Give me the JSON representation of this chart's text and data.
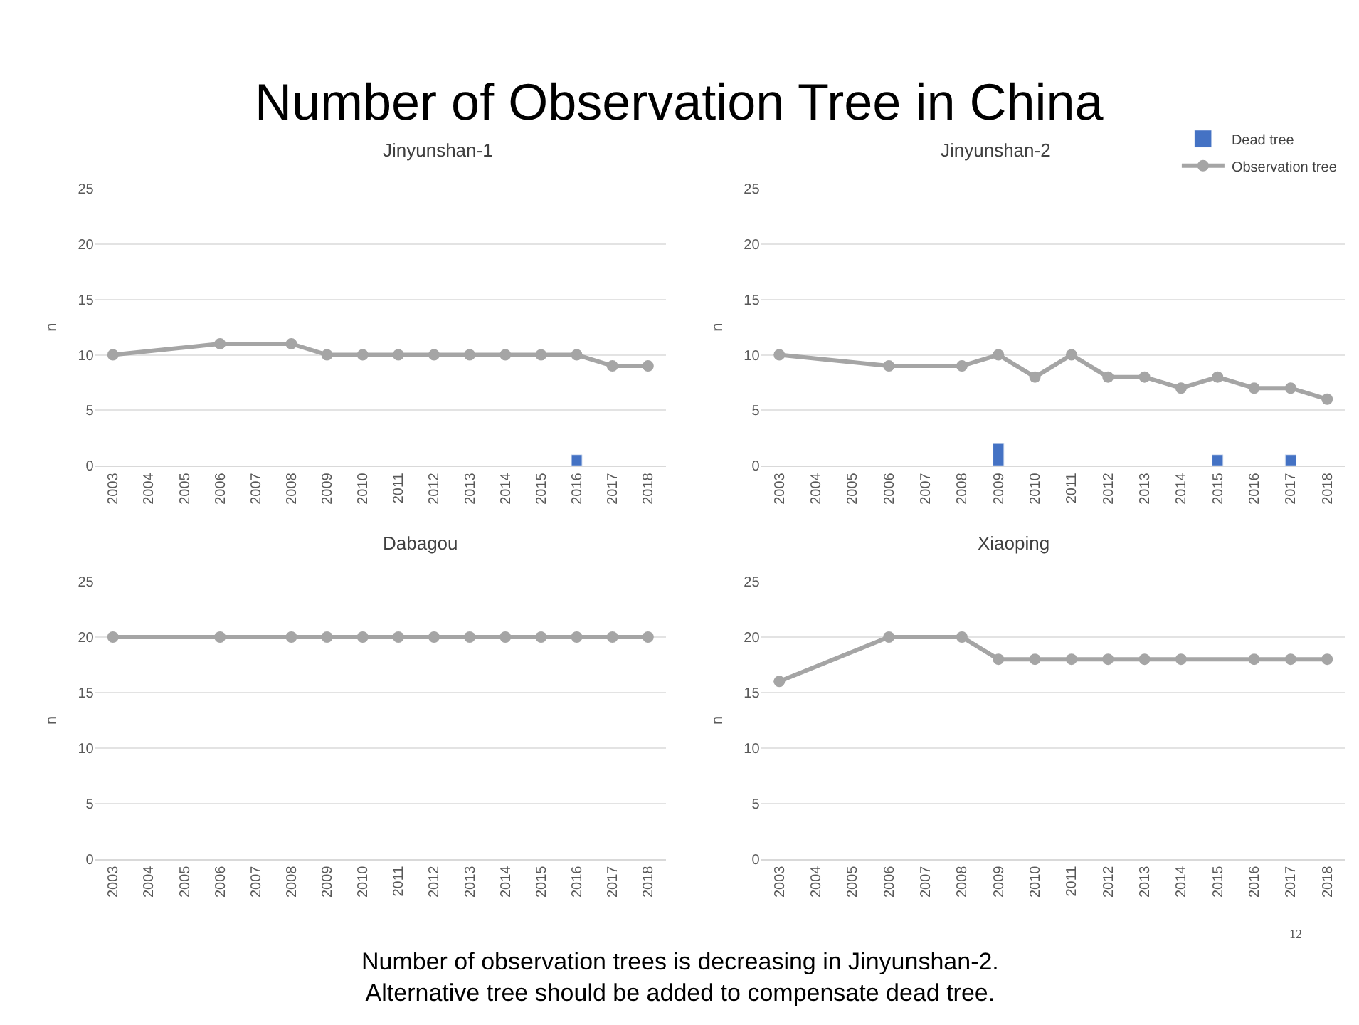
{
  "chart_data": [
    {
      "type": "line",
      "title": "Number of Observation Tree in China",
      "subtitle": "Jinyunshan-1",
      "ylabel": "n",
      "categories": [
        "2003",
        "2004",
        "2005",
        "2006",
        "2007",
        "2008",
        "2009",
        "2010",
        "2011",
        "2012",
        "2013",
        "2014",
        "2015",
        "2016",
        "2017",
        "2018"
      ],
      "ylim": [
        0,
        25
      ],
      "yticks": [
        0,
        5,
        10,
        15,
        20,
        25
      ],
      "grid": "y",
      "legend": false,
      "marker": "circle",
      "series": [
        {
          "type": "bar",
          "color": "#4472c4",
          "values": [
            null,
            null,
            null,
            null,
            null,
            null,
            null,
            null,
            null,
            null,
            null,
            null,
            null,
            1,
            null,
            null
          ]
        },
        {
          "color": "#a5a5a5",
          "values": [
            10,
            null,
            null,
            11,
            null,
            11,
            10,
            10,
            10,
            10,
            10,
            10,
            10,
            10,
            9,
            9
          ]
        }
      ]
    },
    {
      "type": "line",
      "title": "Jinyunshan-2",
      "ylabel": "n",
      "categories": [
        "2003",
        "2004",
        "2005",
        "2006",
        "2007",
        "2008",
        "2009",
        "2010",
        "2011",
        "2012",
        "2013",
        "2014",
        "2015",
        "2016",
        "2017",
        "2018"
      ],
      "ylim": [
        0,
        25
      ],
      "yticks": [
        0,
        5,
        10,
        15,
        20,
        25
      ],
      "grid": "y",
      "legend": "top right",
      "marker": "circle",
      "series": [
        {
          "type": "bar",
          "name": "Dead tree",
          "color": "#4472c4",
          "values": [
            null,
            null,
            null,
            null,
            null,
            null,
            2,
            null,
            null,
            null,
            null,
            null,
            1,
            null,
            1,
            null
          ]
        },
        {
          "name": "Observation tree",
          "color": "#a5a5a5",
          "values": [
            10,
            null,
            null,
            9,
            null,
            9,
            10,
            8,
            10,
            8,
            8,
            7,
            8,
            7,
            7,
            6
          ]
        }
      ]
    },
    {
      "type": "line",
      "title": "Dabagou",
      "ylabel": "n",
      "categories": [
        "2003",
        "2004",
        "2005",
        "2006",
        "2007",
        "2008",
        "2009",
        "2010",
        "2011",
        "2012",
        "2013",
        "2014",
        "2015",
        "2016",
        "2017",
        "2018"
      ],
      "ylim": [
        0,
        25
      ],
      "yticks": [
        0,
        5,
        10,
        15,
        20,
        25
      ],
      "grid": "y",
      "legend": false,
      "marker": "circle",
      "series": [
        {
          "color": "#a5a5a5",
          "values": [
            20,
            null,
            null,
            20,
            null,
            20,
            20,
            20,
            20,
            20,
            20,
            20,
            20,
            20,
            20,
            20
          ]
        }
      ]
    },
    {
      "type": "line",
      "title": "Xiaoping",
      "ylabel": "n",
      "categories": [
        "2003",
        "2004",
        "2005",
        "2006",
        "2007",
        "2008",
        "2009",
        "2010",
        "2011",
        "2012",
        "2013",
        "2014",
        "2015",
        "2016",
        "2017",
        "2018"
      ],
      "ylim": [
        0,
        25
      ],
      "yticks": [
        0,
        5,
        10,
        15,
        20,
        25
      ],
      "grid": "y",
      "legend": false,
      "marker": "circle",
      "annotations": [
        "Number of observation trees is decreasing in Jinyunshan-2.\nAlternative tree should be added to compensate dead tree.",
        "12"
      ],
      "series": [
        {
          "color": "#a5a5a5",
          "values": [
            16,
            null,
            null,
            20,
            null,
            20,
            18,
            18,
            18,
            18,
            18,
            18,
            null,
            18,
            18,
            18
          ]
        }
      ]
    }
  ]
}
